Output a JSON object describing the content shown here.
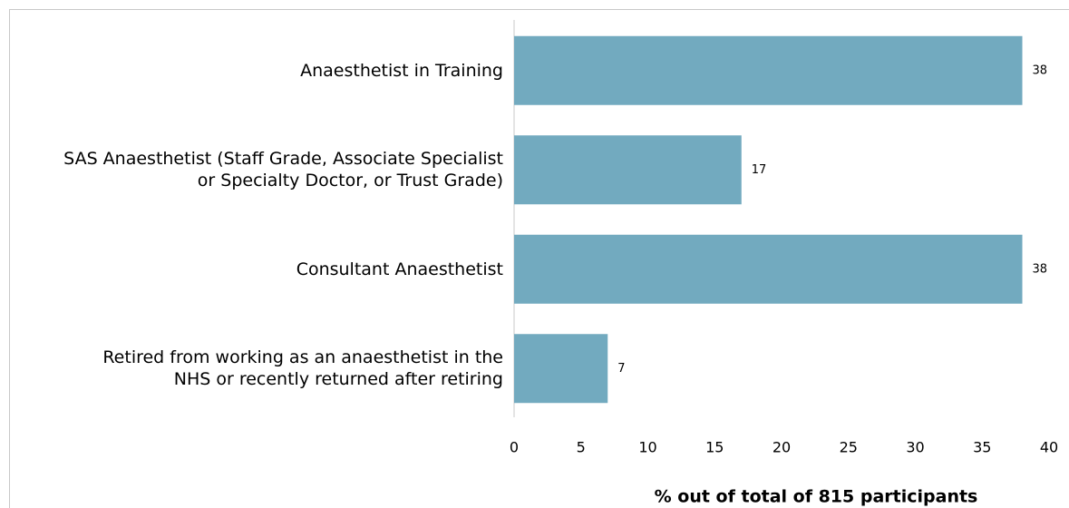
{
  "chart_data": {
    "type": "barh",
    "categories": [
      "Anaesthetist in Training",
      "SAS Anaesthetist (Staff Grade, Associate Specialist\nor Specialty Doctor, or Trust Grade)",
      "Consultant Anaesthetist",
      "Retired from working as an anaesthetist in the\nNHS or recently returned after retiring"
    ],
    "values": [
      38,
      17,
      38,
      7
    ],
    "color": "#72aabf",
    "xlim": [
      0,
      40
    ],
    "xticks": [
      0,
      5,
      10,
      15,
      20,
      25,
      30,
      35,
      40
    ],
    "xlabel": "% out of total of 815 participants"
  }
}
